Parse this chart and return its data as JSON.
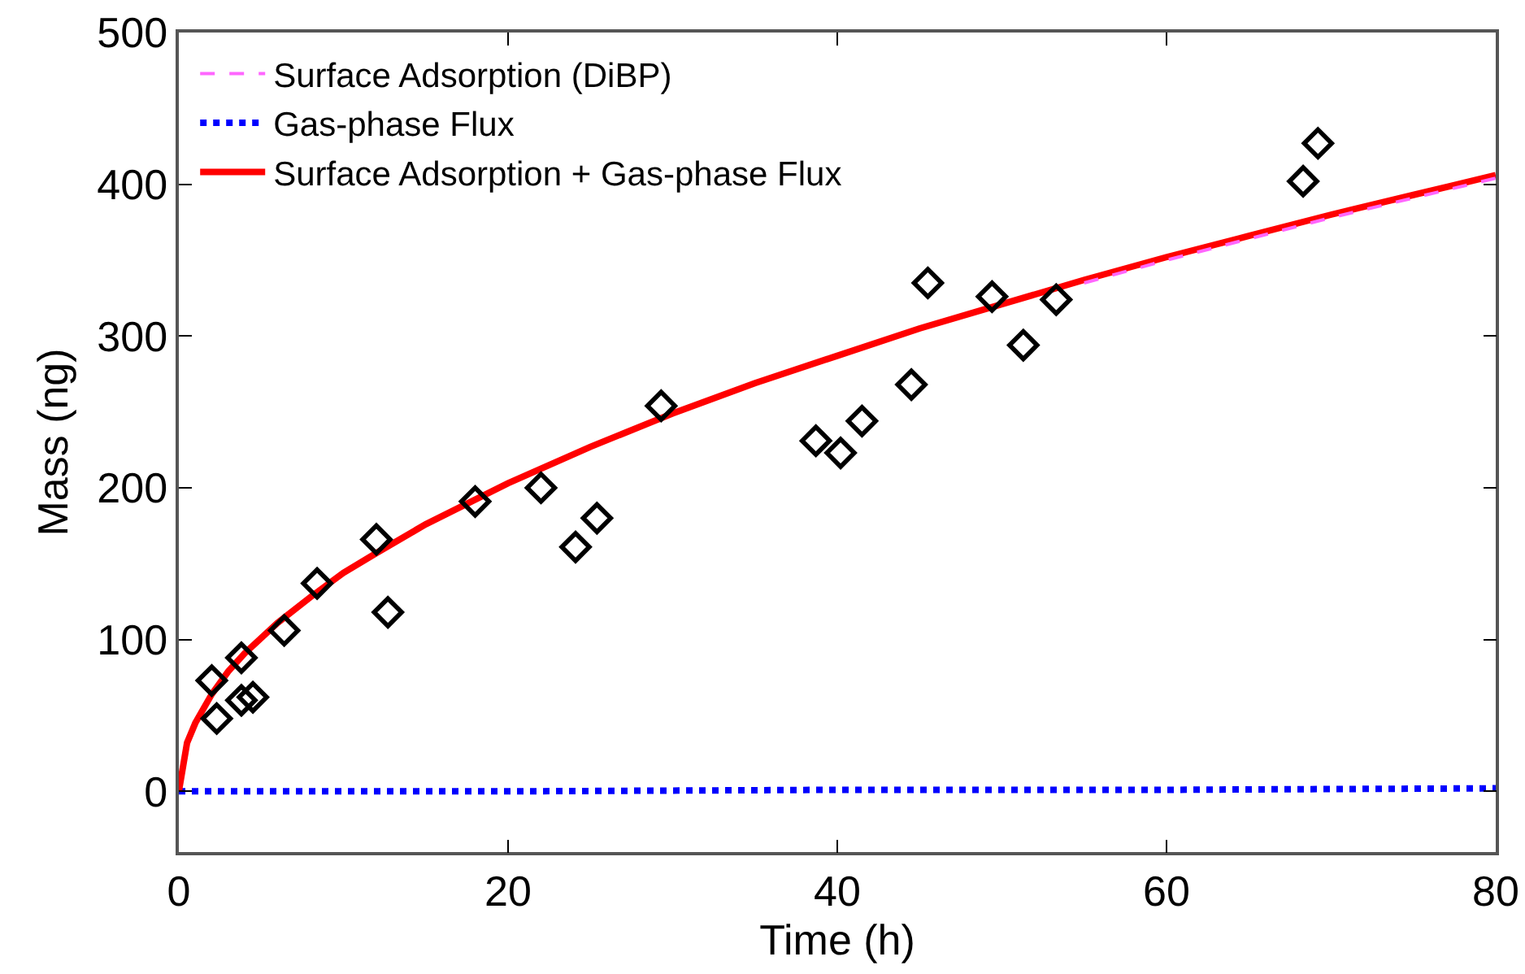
{
  "chart_data": {
    "type": "line",
    "xlabel": "Time (h)",
    "ylabel": "Mass (ng)",
    "xlim": [
      0,
      80
    ],
    "ylim": [
      -40,
      500
    ],
    "xticks": [
      0,
      20,
      40,
      60,
      80
    ],
    "yticks": [
      0,
      100,
      200,
      300,
      400,
      500
    ],
    "grid": false,
    "legend": "top left",
    "series": [
      {
        "name": "Surface Adsorption (DiBP)",
        "color": "#ff66ff",
        "line_style": "dashed",
        "marker": "none",
        "x": [
          55,
          60,
          65,
          70,
          75,
          80
        ],
        "values": [
          335,
          350,
          364,
          378,
          391,
          404
        ]
      },
      {
        "name": "Gas-phase Flux",
        "color": "#0000ff",
        "line_style": "dotted",
        "marker": "none",
        "x": [
          0,
          20,
          40,
          60,
          80
        ],
        "values": [
          0,
          0,
          1,
          1,
          2
        ]
      },
      {
        "name": "Surface Adsorption + Gas-phase Flux",
        "color": "#ff0000",
        "line_style": "solid",
        "marker": "none",
        "x": [
          0,
          0.5,
          1,
          2,
          3,
          4,
          6,
          8,
          10,
          12,
          15,
          20,
          25,
          30,
          35,
          40,
          45,
          50,
          55,
          60,
          65,
          70,
          75,
          80
        ],
        "values": [
          0,
          32,
          45,
          64,
          79,
          91,
          111,
          128,
          144,
          157,
          176,
          203,
          227,
          249,
          269,
          287,
          305,
          321,
          337,
          352,
          366,
          380,
          393,
          406
        ]
      },
      {
        "type": "scatter",
        "color": "#000000",
        "marker": "diamond",
        "x": [
          2.0,
          2.3,
          3.8,
          3.8,
          4.5,
          6.4,
          8.4,
          12.0,
          12.7,
          18.0,
          22.0,
          24.1,
          25.4,
          29.3,
          38.7,
          40.2,
          41.5,
          44.5,
          45.5,
          49.4,
          51.3,
          53.3,
          68.3,
          69.2
        ],
        "values": [
          73,
          48,
          88,
          60,
          62,
          106,
          137,
          166,
          118,
          191,
          200,
          161,
          180,
          254,
          231,
          223,
          244,
          268,
          335,
          326,
          294,
          324,
          402,
          427
        ]
      }
    ]
  }
}
